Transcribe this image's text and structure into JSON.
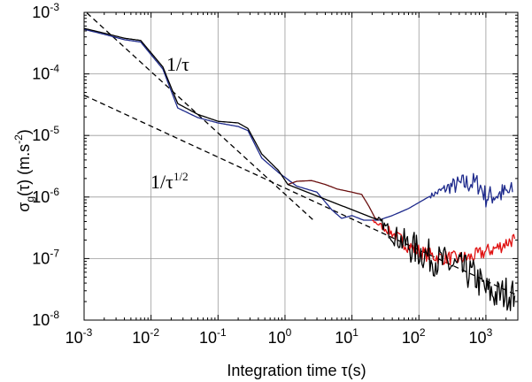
{
  "chart_data": {
    "type": "line",
    "x_scale": "log",
    "y_scale": "log",
    "xlim": [
      0.001,
      3000
    ],
    "ylim": [
      1e-08,
      0.001
    ],
    "grid": true,
    "xlabel": "Integration time τ(s)",
    "ylabel": "σg(τ) (m.s-2)",
    "ylabel_parts": {
      "sigma": "σ",
      "sub": "g",
      "mid": "(τ) (m.s",
      "sup": "-2",
      "end": ")"
    },
    "xlabel_parts": {
      "text": "Integration time τ(s)"
    },
    "x_ticks": [
      {
        "value": 0.001,
        "base": "10",
        "exp": "-3"
      },
      {
        "value": 0.01,
        "base": "10",
        "exp": "-2"
      },
      {
        "value": 0.1,
        "base": "10",
        "exp": "-1"
      },
      {
        "value": 1,
        "base": "10",
        "exp": "0"
      },
      {
        "value": 10,
        "base": "10",
        "exp": "1"
      },
      {
        "value": 100,
        "base": "10",
        "exp": "2"
      },
      {
        "value": 1000,
        "base": "10",
        "exp": "3"
      }
    ],
    "y_ticks": [
      {
        "value": 1e-08,
        "base": "10",
        "exp": "-8"
      },
      {
        "value": 1e-07,
        "base": "10",
        "exp": "-7"
      },
      {
        "value": 1e-06,
        "base": "10",
        "exp": "-6"
      },
      {
        "value": 1e-05,
        "base": "10",
        "exp": "-5"
      },
      {
        "value": 0.0001,
        "base": "10",
        "exp": "-4"
      },
      {
        "value": 0.001,
        "base": "10",
        "exp": "-3"
      }
    ],
    "annotations": [
      {
        "text": "1/τ"
      },
      {
        "text": "1/τ",
        "sup": "1/2"
      }
    ],
    "reference_lines": [
      {
        "label": "1/τ",
        "color": "#000000",
        "dash": true,
        "points": [
          [
            0.0011,
            0.00098
          ],
          [
            2.6,
            4.3e-07
          ]
        ]
      },
      {
        "label": "1/τ^1/2",
        "color": "#000000",
        "dash": true,
        "points": [
          [
            0.001,
            4.5e-05
          ],
          [
            3000,
            2.5e-08
          ]
        ]
      }
    ],
    "series": [
      {
        "color": "#1e2a8c",
        "noise": 0.18,
        "noise_from": 150,
        "points": [
          [
            0.001,
            0.00053
          ],
          [
            0.002,
            0.00044
          ],
          [
            0.004,
            0.00036
          ],
          [
            0.007,
            0.00033
          ],
          [
            0.015,
            0.00012
          ],
          [
            0.025,
            2.8e-05
          ],
          [
            0.05,
            1.95e-05
          ],
          [
            0.1,
            1.6e-05
          ],
          [
            0.2,
            1.4e-05
          ],
          [
            0.28,
            1.2e-05
          ],
          [
            0.45,
            4.3e-06
          ],
          [
            0.8,
            2.5e-06
          ],
          [
            1.5,
            1.5e-06
          ],
          [
            3,
            1.2e-06
          ],
          [
            5,
            6.2e-07
          ],
          [
            7,
            4.5e-07
          ],
          [
            10,
            5e-07
          ],
          [
            15,
            4.2e-07
          ],
          [
            25,
            4.2e-07
          ],
          [
            40,
            5e-07
          ],
          [
            70,
            6.5e-07
          ],
          [
            150,
            1.05e-06
          ],
          [
            300,
            1.5e-06
          ],
          [
            600,
            1.7e-06
          ],
          [
            800,
            1.6e-06
          ],
          [
            1000,
            1e-06
          ],
          [
            1500,
            1.1e-06
          ],
          [
            2500,
            1.2e-06
          ]
        ]
      },
      {
        "color": "#e01010",
        "noise": 0.12,
        "noise_from": 20,
        "points": [
          [
            20,
            4.2e-07
          ],
          [
            40,
            2.6e-07
          ],
          [
            70,
            1.6e-07
          ],
          [
            120,
            1.2e-07
          ],
          [
            200,
            1.05e-07
          ],
          [
            400,
            1e-07
          ],
          [
            600,
            1.05e-07
          ],
          [
            1000,
            1.3e-07
          ],
          [
            1500,
            1.5e-07
          ],
          [
            2000,
            1.8e-07
          ],
          [
            2700,
            2.1e-07
          ]
        ]
      },
      {
        "color": "#6a0f0f",
        "noise": 0.0,
        "noise_from": 99999,
        "points": [
          [
            1.1,
            1.6e-06
          ],
          [
            1.5,
            1.8e-06
          ],
          [
            2.5,
            1.85e-06
          ],
          [
            4,
            1.6e-06
          ],
          [
            6,
            1.35e-06
          ],
          [
            10,
            1.2e-06
          ],
          [
            14,
            1.1e-06
          ],
          [
            18,
            7e-07
          ],
          [
            22,
            4.6e-07
          ],
          [
            25,
            4.2e-07
          ]
        ]
      },
      {
        "color": "#000000",
        "noise": 0.28,
        "noise_from": 25,
        "points": [
          [
            0.001,
            0.00055
          ],
          [
            0.002,
            0.00046
          ],
          [
            0.004,
            0.00038
          ],
          [
            0.007,
            0.00035
          ],
          [
            0.015,
            0.00013
          ],
          [
            0.025,
            3.3e-05
          ],
          [
            0.05,
            2.2e-05
          ],
          [
            0.1,
            1.7e-05
          ],
          [
            0.2,
            1.6e-05
          ],
          [
            0.28,
            1.3e-05
          ],
          [
            0.45,
            5e-06
          ],
          [
            0.8,
            2.7e-06
          ],
          [
            1.1,
            1.6e-06
          ],
          [
            25,
            4.2e-07
          ],
          [
            40,
            2.5e-07
          ],
          [
            70,
            1.6e-07
          ],
          [
            120,
            1.2e-07
          ],
          [
            200,
            9e-08
          ],
          [
            400,
            7e-08
          ],
          [
            700,
            5e-08
          ],
          [
            1000,
            3e-08
          ],
          [
            1500,
            2.5e-08
          ],
          [
            2000,
            2.8e-08
          ],
          [
            2700,
            2.5e-08
          ]
        ]
      }
    ]
  }
}
